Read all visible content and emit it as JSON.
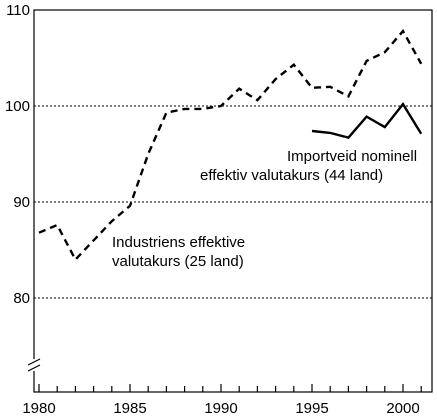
{
  "chart_data": {
    "type": "line",
    "title": "",
    "xlabel": "",
    "ylabel": "",
    "xlim": [
      1980,
      2001
    ],
    "ylim": [
      72,
      110
    ],
    "y_axis_break": true,
    "grid": "horizontal dotted",
    "x_ticks": [
      1980,
      1985,
      1990,
      1995,
      2000
    ],
    "x_tick_labels": [
      "1980",
      "1985",
      "1990",
      "1995",
      "2000"
    ],
    "y_ticks": [
      80,
      90,
      100,
      110
    ],
    "y_tick_labels": [
      "80",
      "90",
      "100",
      "110"
    ],
    "series": [
      {
        "name": "Industriens effektive valutakurs (25 land)",
        "style": "dashed",
        "color": "#000000",
        "x": [
          1980,
          1981,
          1982,
          1983,
          1984,
          1985,
          1986,
          1987,
          1988,
          1989,
          1990,
          1991,
          1992,
          1993,
          1994,
          1995,
          1996,
          1997,
          1998,
          1999,
          2000,
          2001
        ],
        "values": [
          86.8,
          87.6,
          84.0,
          86.0,
          88.0,
          89.6,
          95.0,
          99.3,
          99.7,
          99.7,
          100.0,
          101.8,
          100.6,
          102.8,
          104.3,
          101.9,
          102.0,
          101.0,
          104.7,
          105.6,
          107.8,
          104.4
        ]
      },
      {
        "name": "Importveid nominell effektiv valutakurs (44 land)",
        "style": "solid",
        "color": "#000000",
        "x": [
          1995,
          1996,
          1997,
          1998,
          1999,
          2000,
          2001
        ],
        "values": [
          97.4,
          97.2,
          96.7,
          98.9,
          97.8,
          100.2,
          97.1
        ]
      }
    ],
    "annotations": [
      {
        "series": 0,
        "lines": [
          "Industriens effektive",
          "valutakurs (25 land)"
        ]
      },
      {
        "series": 1,
        "lines": [
          "Importveid nominell",
          "effektiv valutakurs (44 land)"
        ]
      }
    ]
  }
}
